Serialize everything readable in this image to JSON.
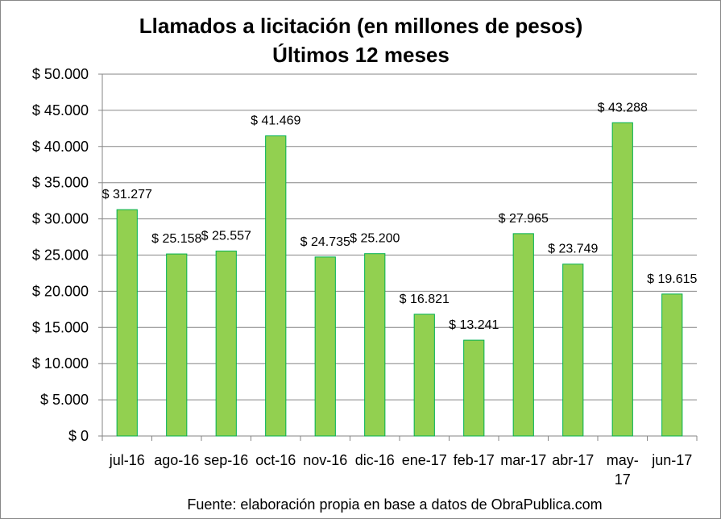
{
  "chart_data": {
    "type": "bar",
    "title": "Llamados a licitación (en millones de pesos)",
    "subtitle": "Últimos 12 meses",
    "categories": [
      "jul-16",
      "ago-16",
      "sep-16",
      "oct-16",
      "nov-16",
      "dic-16",
      "ene-17",
      "feb-17",
      "mar-17",
      "abr-17",
      "may-17",
      "jun-17"
    ],
    "values": [
      31277,
      25158,
      25557,
      41469,
      24735,
      25200,
      16821,
      13241,
      27965,
      23749,
      43288,
      19615
    ],
    "data_labels": [
      "$ 31.277",
      "$ 25.158",
      "$ 25.557",
      "$ 41.469",
      "$ 24.735",
      "$ 25.200",
      "$ 16.821",
      "$ 13.241",
      "$ 27.965",
      "$ 23.749",
      "$ 43.288",
      "$ 19.615"
    ],
    "ylim": [
      0,
      50000
    ],
    "yticks": [
      0,
      5000,
      10000,
      15000,
      20000,
      25000,
      30000,
      35000,
      40000,
      45000,
      50000
    ],
    "ytick_labels": [
      "$ 0",
      "$ 5.000",
      "$ 10.000",
      "$ 15.000",
      "$ 20.000",
      "$ 25.000",
      "$ 30.000",
      "$ 35.000",
      "$ 40.000",
      "$ 45.000",
      "$ 50.000"
    ],
    "xlabel": "",
    "ylabel": "",
    "grid": true,
    "legend": "none",
    "bar_color": "#92d050",
    "bar_edge_color": "#00b050",
    "footnote": "Fuente: elaboración propia en base a datos de ObraPublica.com"
  }
}
